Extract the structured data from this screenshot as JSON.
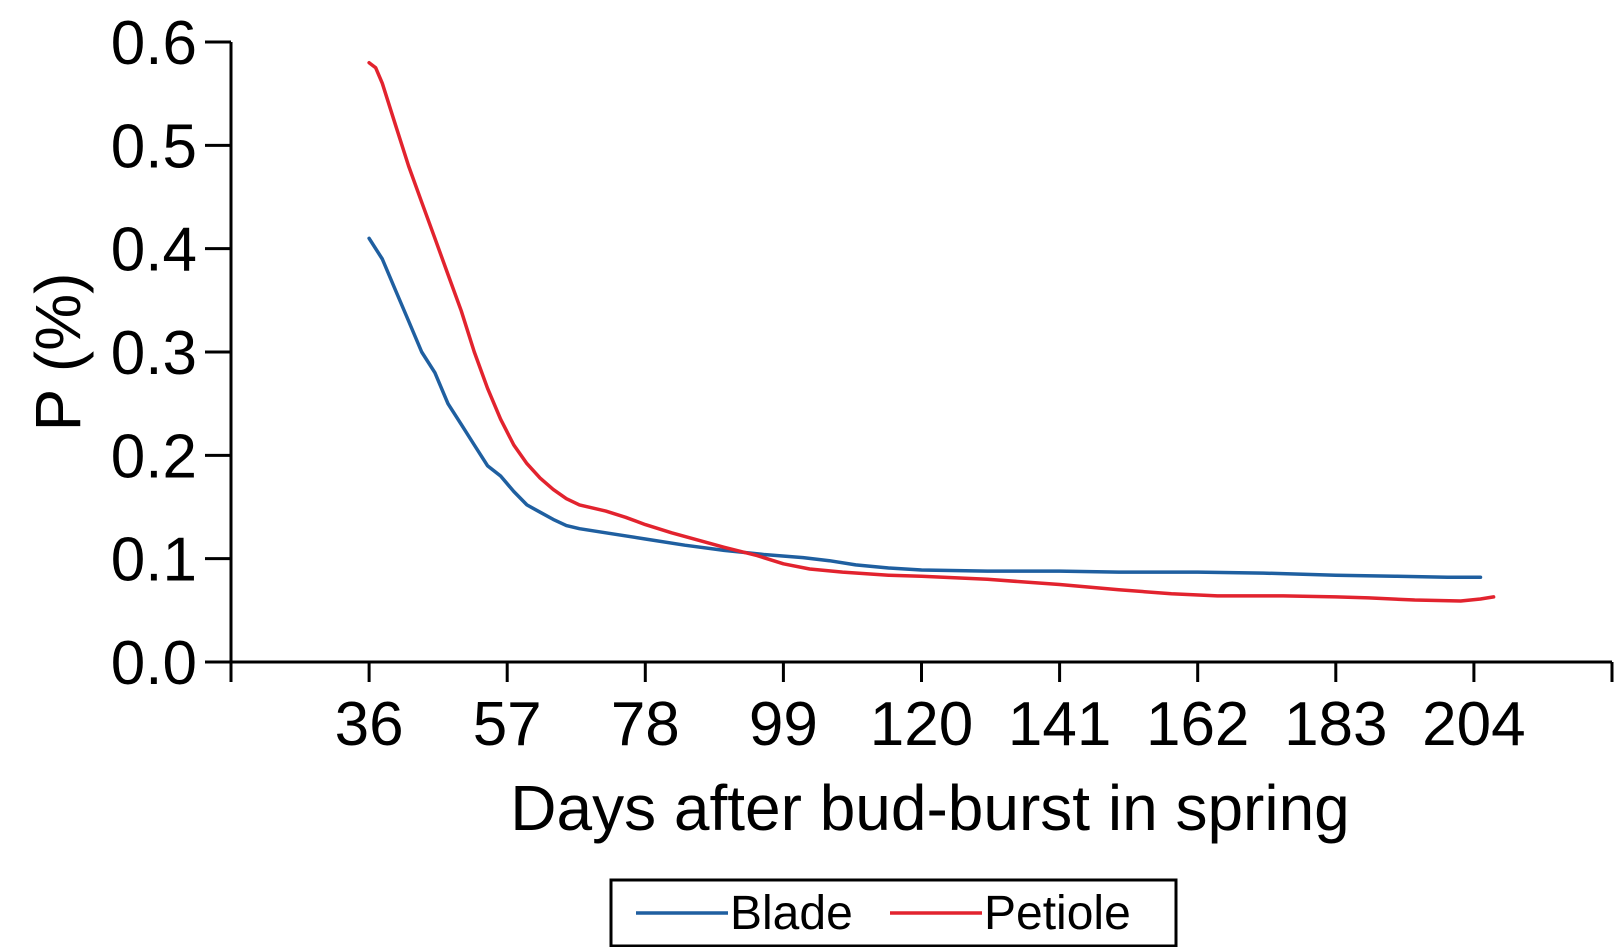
{
  "chart_data": {
    "type": "line",
    "title": "",
    "xlabel": "Days after bud-burst in spring",
    "ylabel": "P (%)",
    "xlim": [
      15,
      225
    ],
    "ylim": [
      0,
      0.6
    ],
    "xticks": [
      36,
      57,
      78,
      99,
      120,
      141,
      162,
      183,
      204
    ],
    "yticks": [
      0.0,
      0.1,
      0.2,
      0.3,
      0.4,
      0.5,
      0.6
    ],
    "ytick_labels": [
      "0.0",
      "0.1",
      "0.2",
      "0.3",
      "0.4",
      "0.5",
      "0.6"
    ],
    "grid": false,
    "legend_position": "bottom",
    "series": [
      {
        "name": "Blade",
        "color": "#1f5fa0",
        "points": [
          [
            36,
            0.41
          ],
          [
            37,
            0.4
          ],
          [
            38,
            0.39
          ],
          [
            40,
            0.36
          ],
          [
            42,
            0.33
          ],
          [
            44,
            0.3
          ],
          [
            46,
            0.28
          ],
          [
            48,
            0.25
          ],
          [
            50,
            0.23
          ],
          [
            52,
            0.21
          ],
          [
            54,
            0.19
          ],
          [
            56,
            0.18
          ],
          [
            58,
            0.165
          ],
          [
            60,
            0.152
          ],
          [
            62,
            0.145
          ],
          [
            64,
            0.138
          ],
          [
            66,
            0.132
          ],
          [
            68,
            0.129
          ],
          [
            72,
            0.125
          ],
          [
            78,
            0.119
          ],
          [
            84,
            0.113
          ],
          [
            90,
            0.108
          ],
          [
            96,
            0.104
          ],
          [
            102,
            0.101
          ],
          [
            106,
            0.098
          ],
          [
            110,
            0.094
          ],
          [
            115,
            0.091
          ],
          [
            120,
            0.089
          ],
          [
            130,
            0.088
          ],
          [
            141,
            0.088
          ],
          [
            150,
            0.087
          ],
          [
            162,
            0.087
          ],
          [
            172,
            0.086
          ],
          [
            183,
            0.084
          ],
          [
            192,
            0.083
          ],
          [
            200,
            0.082
          ],
          [
            205,
            0.082
          ]
        ]
      },
      {
        "name": "Petiole",
        "color": "#e2232e",
        "points": [
          [
            36,
            0.58
          ],
          [
            37,
            0.575
          ],
          [
            38,
            0.56
          ],
          [
            40,
            0.52
          ],
          [
            42,
            0.48
          ],
          [
            44,
            0.445
          ],
          [
            46,
            0.41
          ],
          [
            48,
            0.375
          ],
          [
            50,
            0.34
          ],
          [
            52,
            0.3
          ],
          [
            54,
            0.265
          ],
          [
            56,
            0.235
          ],
          [
            58,
            0.21
          ],
          [
            60,
            0.192
          ],
          [
            62,
            0.178
          ],
          [
            64,
            0.167
          ],
          [
            66,
            0.158
          ],
          [
            68,
            0.152
          ],
          [
            72,
            0.146
          ],
          [
            75,
            0.14
          ],
          [
            78,
            0.133
          ],
          [
            82,
            0.125
          ],
          [
            86,
            0.118
          ],
          [
            90,
            0.111
          ],
          [
            95,
            0.103
          ],
          [
            99,
            0.095
          ],
          [
            103,
            0.09
          ],
          [
            108,
            0.087
          ],
          [
            115,
            0.084
          ],
          [
            120,
            0.083
          ],
          [
            130,
            0.08
          ],
          [
            141,
            0.075
          ],
          [
            150,
            0.07
          ],
          [
            158,
            0.066
          ],
          [
            165,
            0.064
          ],
          [
            175,
            0.064
          ],
          [
            183,
            0.063
          ],
          [
            188,
            0.062
          ],
          [
            195,
            0.06
          ],
          [
            202,
            0.059
          ],
          [
            205,
            0.061
          ],
          [
            207,
            0.063
          ]
        ]
      }
    ]
  }
}
